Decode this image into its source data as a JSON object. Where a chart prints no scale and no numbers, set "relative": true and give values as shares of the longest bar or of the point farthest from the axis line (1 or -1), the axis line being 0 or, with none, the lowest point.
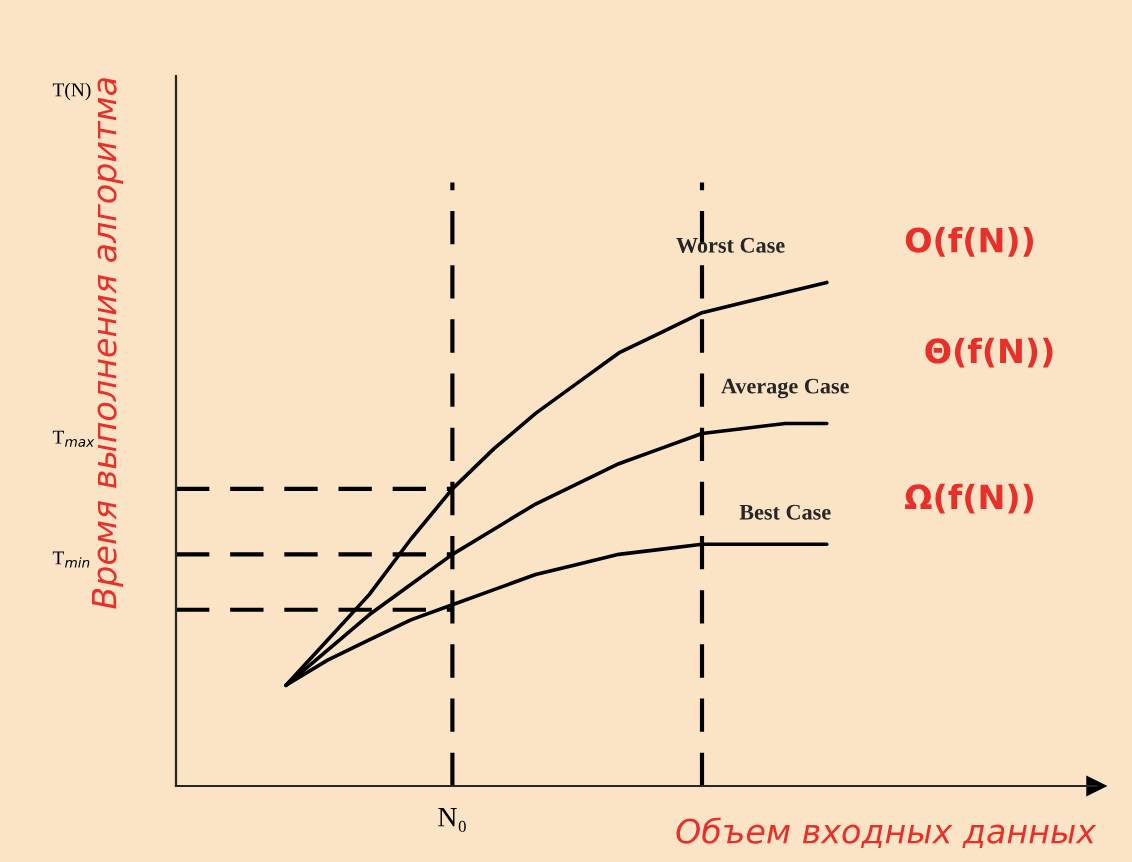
{
  "chart_data": {
    "type": "line",
    "relative": true,
    "xlabel": "Объем входных данных",
    "ylabel": "Время выполнения алгоритма",
    "categories": [
      null,
      null,
      null,
      null,
      null,
      null,
      null,
      null,
      null,
      null,
      null,
      null,
      null,
      null
    ],
    "series": [
      {
        "name": "Worst Case",
        "color": "#000000",
        "values": [
          0.2,
          0.29,
          0.38,
          0.49,
          0.59,
          0.67,
          0.74,
          0.8,
          0.86,
          0.9,
          0.94,
          0.96,
          0.98,
          1.0
        ]
      },
      {
        "name": "Average Case",
        "color": "#000000",
        "values": [
          0.2,
          0.27,
          0.34,
          0.4,
          0.46,
          0.51,
          0.56,
          0.6,
          0.64,
          0.67,
          0.7,
          0.71,
          0.72,
          0.72
        ]
      },
      {
        "name": "Best Case",
        "color": "#000000",
        "values": [
          0.2,
          0.25,
          0.29,
          0.33,
          0.36,
          0.39,
          0.42,
          0.44,
          0.46,
          0.47,
          0.48,
          0.48,
          0.48,
          0.48
        ]
      }
    ],
    "ref_lines": [
      {
        "axis": "y",
        "value": 0.59,
        "color": "#000000",
        "line_style": "dashed"
      },
      {
        "axis": "y",
        "value": 0.46,
        "color": "#000000",
        "line_style": "dashed"
      },
      {
        "axis": "y",
        "value": 0.35,
        "color": "#000000",
        "line_style": "dashed"
      }
    ],
    "annotations": [
      "T(N)",
      "T$_{max}$",
      "T$_{min}$",
      "O(f(N))",
      "Θ(f(N))",
      "Ω(f(N))",
      "N₀"
    ],
    "marker": "none",
    "line_style": "solid"
  }
}
